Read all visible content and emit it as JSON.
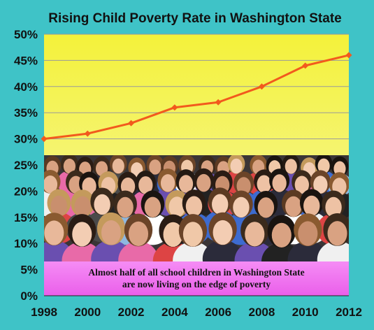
{
  "chart_data": {
    "type": "line",
    "title": "Rising Child Poverty Rate in Washington State",
    "x": [
      1998,
      2000,
      2002,
      2004,
      2006,
      2008,
      2010,
      2012
    ],
    "x_tick_labels": [
      "1998",
      "2000",
      "2002",
      "2004",
      "2006",
      "2008",
      "2010",
      "2012"
    ],
    "series": [
      {
        "values": [
          30,
          31,
          33,
          36,
          37,
          40,
          44,
          46
        ]
      }
    ],
    "ylim": [
      0,
      50
    ],
    "y_tick_labels": [
      "0%",
      "5%",
      "10%",
      "15%",
      "20%",
      "25%",
      "30%",
      "35%",
      "40%",
      "45%",
      "50%"
    ],
    "grid": "horizontal",
    "caption": {
      "line1": "Almost half of all school children in Washington State",
      "line2": "are now living on the edge of poverty"
    },
    "photo": "crowd of school children"
  },
  "colors": {
    "page_background": "#3fc3c7",
    "plot_top": "#f4f23a",
    "plot_bottom": "#f6f7c8",
    "series_line": "#f25a1d",
    "caption_background": "#f06ff0"
  }
}
